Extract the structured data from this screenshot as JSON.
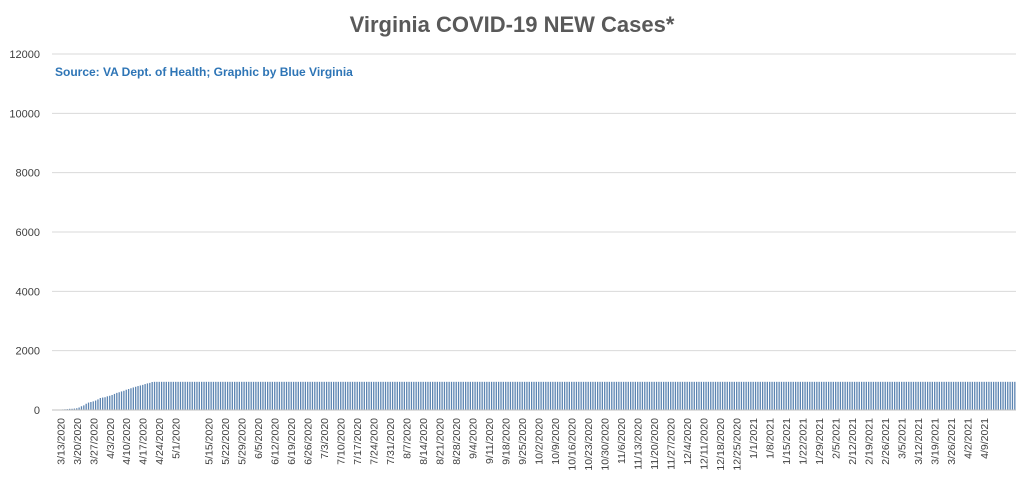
{
  "chart_data": {
    "type": "bar",
    "title": "Virginia COVID-19 NEW Cases*",
    "subtitle": "Source: VA Dept. of Health; Graphic by Blue Virginia",
    "xlabel": "",
    "ylabel": "",
    "ylim": [
      0,
      12000
    ],
    "y_ticks": [
      0,
      2000,
      4000,
      6000,
      8000,
      10000,
      12000
    ],
    "y_tick_labels": [
      "0",
      "2000",
      "4000",
      "6000",
      "8000",
      "10000",
      "12000"
    ],
    "grid": true,
    "legend": "none",
    "bar_color": "#5b84b1",
    "x_start": "3/10/2020",
    "x_tick_labels": [
      "3/13/2020",
      "3/20/2020",
      "3/27/2020",
      "4/3/2020",
      "4/10/2020",
      "4/17/2020",
      "4/24/2020",
      "5/1/2020",
      "5/15/2020",
      "5/22/2020",
      "5/29/2020",
      "6/5/2020",
      "6/12/2020",
      "6/19/2020",
      "6/26/2020",
      "7/3/2020",
      "7/10/2020",
      "7/17/2020",
      "7/24/2020",
      "7/31/2020",
      "8/7/2020",
      "8/14/2020",
      "8/21/2020",
      "8/28/2020",
      "9/4/2020",
      "9/11/2020",
      "9/18/2020",
      "9/25/2020",
      "10/2/2020",
      "10/9/2020",
      "10/16/2020",
      "10/23/2020",
      "10/30/2020",
      "11/6/2020",
      "11/13/2020",
      "11/20/2020",
      "11/27/2020",
      "12/4/2020",
      "12/11/2020",
      "12/18/2020",
      "12/25/2020",
      "1/1/2021",
      "1/8/2021",
      "1/15/2021",
      "1/22/2021",
      "1/29/2021",
      "2/5/2021",
      "2/12/2021",
      "2/19/2021",
      "2/26/2021",
      "3/5/2021",
      "3/12/2021",
      "3/19/2021",
      "3/26/2021",
      "4/2/2021",
      "4/9/2021"
    ],
    "x_tick_index": [
      3,
      10,
      17,
      24,
      31,
      38,
      45,
      52,
      66,
      73,
      80,
      87,
      94,
      101,
      108,
      115,
      122,
      129,
      136,
      143,
      150,
      157,
      164,
      171,
      178,
      185,
      192,
      199,
      206,
      213,
      220,
      227,
      234,
      241,
      248,
      255,
      262,
      269,
      276,
      283,
      290,
      297,
      304,
      311,
      318,
      325,
      332,
      339,
      346,
      353,
      360,
      367,
      374,
      381,
      388,
      395
    ],
    "values": [
      5,
      8,
      10,
      15,
      20,
      25,
      30,
      40,
      41,
      49,
      59,
      84,
      126,
      156,
      211,
      250,
      270,
      291,
      319,
      357,
      405,
      420,
      430,
      461,
      480,
      506,
      542,
      577,
      598,
      626,
      648,
      683,
      707,
      733,
      760,
      783,
      807,
      827,
      847,
      874,
      897,
      915,
      944,
      950,
      950,
      950,
      950,
      950,
      950,
      950,
      950,
      950,
      950,
      950,
      950,
      950,
      950,
      950,
      950,
      950,
      950,
      950,
      950,
      950,
      950,
      950,
      950,
      950,
      950,
      950,
      950,
      950,
      950,
      950,
      950,
      950,
      950,
      950,
      950,
      950,
      950,
      950,
      950,
      950,
      950,
      950,
      950,
      950,
      950,
      950,
      950,
      950,
      950,
      950,
      950,
      950,
      950,
      950,
      950,
      950,
      950,
      950,
      950,
      950,
      950,
      950,
      950,
      950,
      950,
      950,
      950,
      950,
      950,
      950,
      950,
      950,
      950,
      950,
      950,
      950,
      950,
      950,
      950,
      950,
      950,
      950,
      950,
      950,
      950,
      950,
      950,
      950,
      950,
      950,
      950,
      950,
      950,
      950,
      950,
      950,
      950,
      950,
      950,
      950,
      950,
      950,
      950,
      950,
      950,
      950,
      950,
      950,
      950,
      950,
      950,
      950,
      950,
      950,
      950,
      950,
      950,
      950,
      950,
      950,
      950,
      950,
      950,
      950,
      950,
      950,
      950,
      950,
      950,
      950,
      950,
      950,
      950,
      950,
      950,
      950,
      950,
      950,
      950,
      950,
      950,
      950,
      950,
      950,
      950,
      950,
      950,
      950,
      950,
      950,
      950,
      950,
      950,
      950,
      950,
      950,
      950,
      950,
      950,
      950,
      950,
      950,
      950,
      950,
      950,
      950,
      950,
      950,
      950,
      950,
      950,
      950,
      950,
      950,
      950,
      950,
      950,
      950,
      950,
      950,
      950,
      950,
      950,
      950,
      950,
      950,
      950,
      950,
      950,
      950,
      950,
      950,
      950,
      950,
      950,
      950,
      950,
      950,
      950,
      950,
      950,
      950,
      950,
      950,
      950,
      950,
      950,
      950,
      950,
      950,
      950,
      950,
      950,
      950,
      950,
      950,
      950,
      950,
      950,
      950,
      950,
      950,
      950,
      950,
      950,
      950,
      950,
      950,
      950,
      950,
      950,
      950,
      950,
      950,
      950,
      950,
      950,
      950,
      950,
      950,
      950,
      950,
      950,
      950,
      950,
      950,
      950,
      950,
      950,
      950,
      950,
      950,
      950,
      950,
      950,
      950,
      950,
      950,
      950,
      950,
      950,
      950,
      950,
      950,
      950,
      950,
      950,
      950,
      950,
      950,
      950,
      950,
      950,
      950,
      950,
      950,
      950,
      950,
      950,
      950,
      950,
      950,
      950,
      950,
      950,
      950,
      950,
      950,
      950,
      950,
      950,
      950,
      950,
      950,
      950,
      950,
      950,
      950,
      950,
      950,
      950,
      950,
      950,
      950,
      950,
      950,
      950,
      950,
      950,
      950,
      950,
      950,
      950,
      950,
      950,
      950,
      950,
      950,
      950,
      950,
      950,
      950,
      950,
      950,
      950,
      950,
      950,
      950,
      950,
      950,
      950,
      950,
      950,
      950,
      950,
      950,
      950,
      950,
      950,
      950,
      950,
      950,
      950,
      950,
      950,
      950,
      950,
      950,
      950,
      950,
      950,
      950,
      950,
      950,
      950,
      950,
      950,
      950,
      950,
      950,
      950,
      950,
      950,
      950,
      950
    ]
  }
}
